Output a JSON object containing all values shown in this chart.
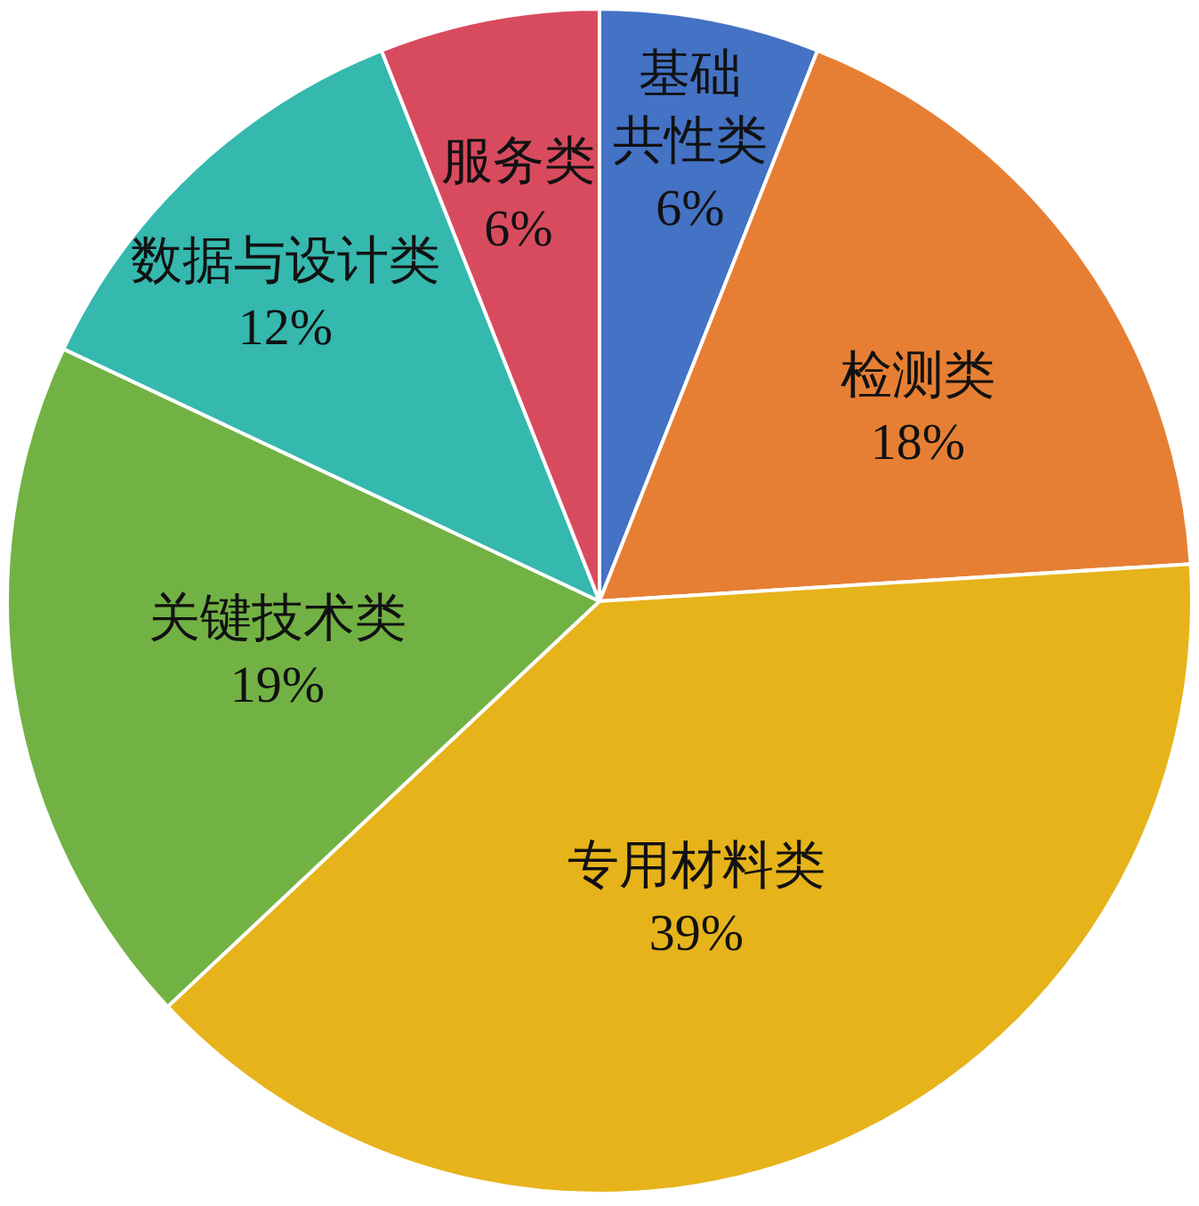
{
  "chart_data": {
    "type": "pie",
    "categories": [
      "基础共性类",
      "检测类",
      "专用材料类",
      "关键技术类",
      "数据与设计类",
      "服务类"
    ],
    "values": [
      6,
      18,
      39,
      19,
      12,
      6
    ],
    "value_labels": [
      "6%",
      "18%",
      "39%",
      "19%",
      "12%",
      "6%"
    ],
    "colors": [
      "#4472c4",
      "#e67f34",
      "#e6b31a",
      "#72b244",
      "#35b8ae",
      "#d84b5e"
    ]
  }
}
